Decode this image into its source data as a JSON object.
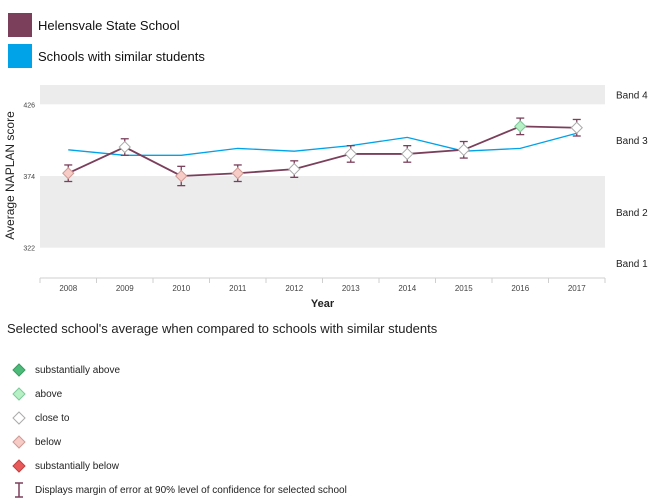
{
  "legend": {
    "items": [
      {
        "label": "Helensvale State School",
        "color": "#7b3f5b"
      },
      {
        "label": "Schools with similar students",
        "color": "#00a2e8"
      }
    ]
  },
  "chart_data": {
    "type": "line",
    "ylabel": "Average NAPLAN score",
    "xlabel": "Year",
    "x": [
      "2008",
      "2009",
      "2010",
      "2011",
      "2012",
      "2013",
      "2014",
      "2015",
      "2016",
      "2017"
    ],
    "y_ticks": [
      322,
      374,
      426
    ],
    "ylim": [
      300,
      440
    ],
    "bands": [
      {
        "label": "Band 4",
        "from": 426,
        "to": 440,
        "shaded": true
      },
      {
        "label": "Band 3",
        "from": 374,
        "to": 426,
        "shaded": false
      },
      {
        "label": "Band 2",
        "from": 322,
        "to": 374,
        "shaded": true
      },
      {
        "label": "Band 1",
        "from": 300,
        "to": 322,
        "shaded": false
      }
    ],
    "series": [
      {
        "name": "Helensvale State School",
        "color": "#7b3f5b",
        "values": [
          376,
          395,
          374,
          376,
          379,
          390,
          390,
          393,
          410,
          409
        ],
        "error": [
          6,
          6,
          7,
          6,
          6,
          6,
          6,
          6,
          6,
          6
        ],
        "comparison": [
          "below",
          "close to",
          "below",
          "below",
          "close to",
          "close to",
          "close to",
          "close to",
          "above",
          "close to"
        ]
      },
      {
        "name": "Schools with similar students",
        "color": "#00a2e8",
        "values": [
          393,
          389,
          389,
          394,
          392,
          396,
          402,
          392,
          394,
          405
        ]
      }
    ]
  },
  "key": {
    "title": "Selected school's average when compared to schools with similar students",
    "items": [
      {
        "label": "substantially above",
        "fill": "#4cbb7a",
        "stroke": "#3a9a60"
      },
      {
        "label": "above",
        "fill": "#b6f0c4",
        "stroke": "#7cc99a"
      },
      {
        "label": "close to",
        "fill": "#ffffff",
        "stroke": "#aaaaaa"
      },
      {
        "label": "below",
        "fill": "#f7cbc6",
        "stroke": "#d09a94"
      },
      {
        "label": "substantially below",
        "fill": "#e85a5a",
        "stroke": "#c04040"
      }
    ],
    "error_label": "Displays margin of error at 90% level of confidence for selected school"
  }
}
